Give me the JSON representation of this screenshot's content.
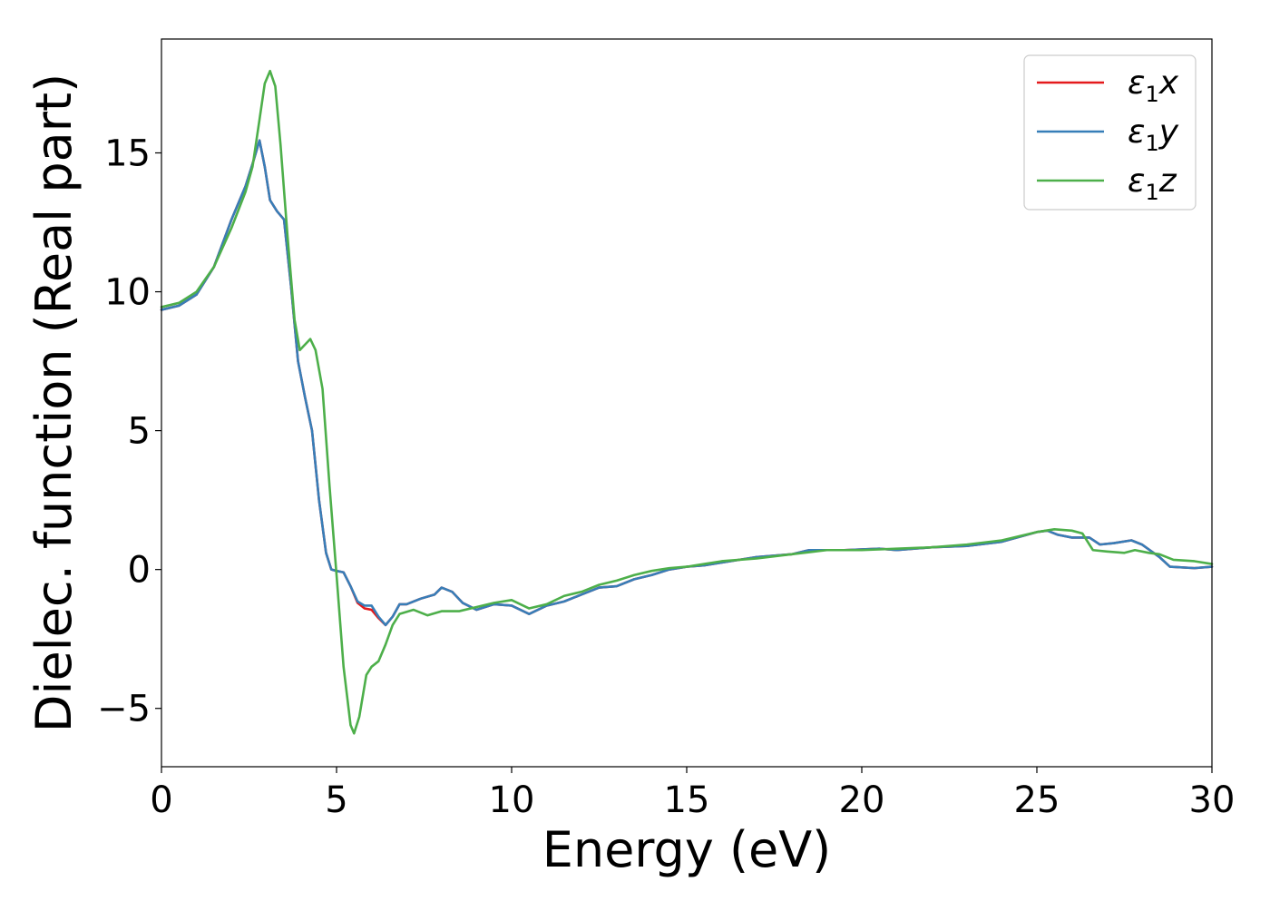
{
  "chart_data": {
    "type": "line",
    "title": "",
    "xlabel": "Energy (eV)",
    "ylabel": "Dielec. function (Real part)",
    "xlim": [
      0,
      30
    ],
    "ylim": [
      -7.1,
      19.1
    ],
    "xticks": [
      0,
      5,
      10,
      15,
      20,
      25,
      30
    ],
    "xtick_labels": [
      "0",
      "5",
      "10",
      "15",
      "20",
      "25",
      "30"
    ],
    "yticks": [
      -5,
      0,
      5,
      10,
      15
    ],
    "ytick_labels": [
      "−5",
      "0",
      "5",
      "10",
      "15"
    ],
    "grid": false,
    "legend_position": "top-right",
    "legend": [
      {
        "label": "ε",
        "sub": "1",
        "suffix": "x",
        "color": "#e41a1c"
      },
      {
        "label": "ε",
        "sub": "1",
        "suffix": "y",
        "color": "#377eb8"
      },
      {
        "label": "ε",
        "sub": "1",
        "suffix": "z",
        "color": "#4daf4a"
      }
    ],
    "series": [
      {
        "name": "ε1x",
        "color": "#e41a1c",
        "points": [
          [
            0,
            9.35
          ],
          [
            0.5,
            9.5
          ],
          [
            1,
            9.9
          ],
          [
            1.5,
            10.9
          ],
          [
            2,
            12.6
          ],
          [
            2.4,
            13.8
          ],
          [
            2.6,
            14.6
          ],
          [
            2.8,
            15.45
          ],
          [
            2.95,
            14.5
          ],
          [
            3.1,
            13.3
          ],
          [
            3.3,
            12.9
          ],
          [
            3.5,
            12.6
          ],
          [
            3.7,
            10.2
          ],
          [
            3.9,
            7.5
          ],
          [
            4.1,
            6.2
          ],
          [
            4.3,
            5.0
          ],
          [
            4.5,
            2.5
          ],
          [
            4.7,
            0.6
          ],
          [
            4.85,
            0.0
          ],
          [
            5.0,
            -0.05
          ],
          [
            5.2,
            -0.1
          ],
          [
            5.4,
            -0.6
          ],
          [
            5.6,
            -1.2
          ],
          [
            5.8,
            -1.4
          ],
          [
            6.0,
            -1.45
          ],
          [
            6.2,
            -1.75
          ],
          [
            6.4,
            -2.0
          ],
          [
            6.6,
            -1.7
          ],
          [
            6.8,
            -1.25
          ],
          [
            7.0,
            -1.25
          ],
          [
            7.4,
            -1.05
          ],
          [
            7.8,
            -0.9
          ],
          [
            8.0,
            -0.65
          ],
          [
            8.3,
            -0.8
          ],
          [
            8.6,
            -1.2
          ],
          [
            9.0,
            -1.45
          ],
          [
            9.5,
            -1.25
          ],
          [
            10.0,
            -1.3
          ],
          [
            10.5,
            -1.6
          ],
          [
            11.0,
            -1.3
          ],
          [
            11.5,
            -1.15
          ],
          [
            12.0,
            -0.9
          ],
          [
            12.5,
            -0.65
          ],
          [
            13.0,
            -0.6
          ],
          [
            13.5,
            -0.35
          ],
          [
            14.0,
            -0.2
          ],
          [
            14.5,
            0.0
          ],
          [
            15.0,
            0.1
          ],
          [
            15.5,
            0.15
          ],
          [
            16.0,
            0.25
          ],
          [
            17.0,
            0.45
          ],
          [
            18.0,
            0.55
          ],
          [
            18.5,
            0.7
          ],
          [
            19.5,
            0.7
          ],
          [
            20.5,
            0.75
          ],
          [
            21.0,
            0.7
          ],
          [
            22.0,
            0.8
          ],
          [
            23.0,
            0.85
          ],
          [
            24.0,
            1.0
          ],
          [
            25.0,
            1.35
          ],
          [
            25.3,
            1.4
          ],
          [
            25.6,
            1.25
          ],
          [
            26.0,
            1.15
          ],
          [
            26.5,
            1.15
          ],
          [
            26.8,
            0.9
          ],
          [
            27.2,
            0.95
          ],
          [
            27.7,
            1.05
          ],
          [
            28.0,
            0.9
          ],
          [
            28.5,
            0.45
          ],
          [
            28.8,
            0.1
          ],
          [
            29.5,
            0.05
          ],
          [
            30,
            0.1
          ]
        ]
      },
      {
        "name": "ε1y",
        "color": "#377eb8",
        "points": [
          [
            0,
            9.35
          ],
          [
            0.5,
            9.5
          ],
          [
            1,
            9.9
          ],
          [
            1.5,
            10.9
          ],
          [
            2,
            12.6
          ],
          [
            2.4,
            13.8
          ],
          [
            2.6,
            14.6
          ],
          [
            2.8,
            15.45
          ],
          [
            2.95,
            14.5
          ],
          [
            3.1,
            13.3
          ],
          [
            3.3,
            12.9
          ],
          [
            3.5,
            12.6
          ],
          [
            3.7,
            10.2
          ],
          [
            3.9,
            7.5
          ],
          [
            4.1,
            6.2
          ],
          [
            4.3,
            5.0
          ],
          [
            4.5,
            2.5
          ],
          [
            4.7,
            0.6
          ],
          [
            4.85,
            0.0
          ],
          [
            5.0,
            -0.05
          ],
          [
            5.2,
            -0.1
          ],
          [
            5.4,
            -0.6
          ],
          [
            5.6,
            -1.15
          ],
          [
            5.8,
            -1.3
          ],
          [
            6.0,
            -1.3
          ],
          [
            6.2,
            -1.7
          ],
          [
            6.4,
            -2.0
          ],
          [
            6.6,
            -1.7
          ],
          [
            6.8,
            -1.25
          ],
          [
            7.0,
            -1.25
          ],
          [
            7.4,
            -1.05
          ],
          [
            7.8,
            -0.9
          ],
          [
            8.0,
            -0.65
          ],
          [
            8.3,
            -0.8
          ],
          [
            8.6,
            -1.2
          ],
          [
            9.0,
            -1.45
          ],
          [
            9.5,
            -1.25
          ],
          [
            10.0,
            -1.3
          ],
          [
            10.5,
            -1.6
          ],
          [
            11.0,
            -1.3
          ],
          [
            11.5,
            -1.15
          ],
          [
            12.0,
            -0.9
          ],
          [
            12.5,
            -0.65
          ],
          [
            13.0,
            -0.6
          ],
          [
            13.5,
            -0.35
          ],
          [
            14.0,
            -0.2
          ],
          [
            14.5,
            0.0
          ],
          [
            15.0,
            0.1
          ],
          [
            15.5,
            0.15
          ],
          [
            16.0,
            0.25
          ],
          [
            17.0,
            0.45
          ],
          [
            18.0,
            0.55
          ],
          [
            18.5,
            0.7
          ],
          [
            19.5,
            0.7
          ],
          [
            20.5,
            0.75
          ],
          [
            21.0,
            0.7
          ],
          [
            22.0,
            0.8
          ],
          [
            23.0,
            0.85
          ],
          [
            24.0,
            1.0
          ],
          [
            25.0,
            1.35
          ],
          [
            25.3,
            1.4
          ],
          [
            25.6,
            1.25
          ],
          [
            26.0,
            1.15
          ],
          [
            26.5,
            1.15
          ],
          [
            26.8,
            0.9
          ],
          [
            27.2,
            0.95
          ],
          [
            27.7,
            1.05
          ],
          [
            28.0,
            0.9
          ],
          [
            28.5,
            0.45
          ],
          [
            28.8,
            0.1
          ],
          [
            29.5,
            0.05
          ],
          [
            30,
            0.1
          ]
        ]
      },
      {
        "name": "ε1z",
        "color": "#4daf4a",
        "points": [
          [
            0,
            9.45
          ],
          [
            0.5,
            9.6
          ],
          [
            1,
            10.0
          ],
          [
            1.5,
            10.9
          ],
          [
            2,
            12.3
          ],
          [
            2.4,
            13.6
          ],
          [
            2.6,
            14.5
          ],
          [
            2.8,
            16.2
          ],
          [
            2.95,
            17.5
          ],
          [
            3.1,
            17.95
          ],
          [
            3.25,
            17.4
          ],
          [
            3.4,
            15.3
          ],
          [
            3.6,
            12.0
          ],
          [
            3.8,
            9.0
          ],
          [
            3.95,
            7.9
          ],
          [
            4.1,
            8.1
          ],
          [
            4.25,
            8.3
          ],
          [
            4.4,
            7.9
          ],
          [
            4.6,
            6.5
          ],
          [
            4.8,
            3.0
          ],
          [
            5.0,
            -0.2
          ],
          [
            5.2,
            -3.5
          ],
          [
            5.4,
            -5.6
          ],
          [
            5.5,
            -5.9
          ],
          [
            5.65,
            -5.3
          ],
          [
            5.85,
            -3.8
          ],
          [
            6.0,
            -3.5
          ],
          [
            6.2,
            -3.3
          ],
          [
            6.4,
            -2.7
          ],
          [
            6.6,
            -2.0
          ],
          [
            6.8,
            -1.6
          ],
          [
            7.2,
            -1.45
          ],
          [
            7.6,
            -1.65
          ],
          [
            8.0,
            -1.5
          ],
          [
            8.5,
            -1.5
          ],
          [
            9.0,
            -1.35
          ],
          [
            9.5,
            -1.2
          ],
          [
            10.0,
            -1.1
          ],
          [
            10.5,
            -1.4
          ],
          [
            11.0,
            -1.25
          ],
          [
            11.5,
            -0.95
          ],
          [
            12.0,
            -0.8
          ],
          [
            12.5,
            -0.55
          ],
          [
            13.0,
            -0.4
          ],
          [
            13.5,
            -0.2
          ],
          [
            14.0,
            -0.05
          ],
          [
            14.5,
            0.05
          ],
          [
            15.0,
            0.1
          ],
          [
            15.5,
            0.2
          ],
          [
            16.0,
            0.3
          ],
          [
            17.0,
            0.4
          ],
          [
            18.0,
            0.55
          ],
          [
            19.0,
            0.7
          ],
          [
            20.0,
            0.7
          ],
          [
            21.0,
            0.75
          ],
          [
            22.0,
            0.8
          ],
          [
            23.0,
            0.9
          ],
          [
            24.0,
            1.05
          ],
          [
            25.0,
            1.35
          ],
          [
            25.5,
            1.45
          ],
          [
            26.0,
            1.4
          ],
          [
            26.3,
            1.3
          ],
          [
            26.6,
            0.7
          ],
          [
            27.0,
            0.65
          ],
          [
            27.5,
            0.6
          ],
          [
            27.8,
            0.7
          ],
          [
            28.2,
            0.6
          ],
          [
            28.5,
            0.55
          ],
          [
            28.9,
            0.35
          ],
          [
            29.5,
            0.3
          ],
          [
            30,
            0.2
          ]
        ]
      }
    ]
  }
}
